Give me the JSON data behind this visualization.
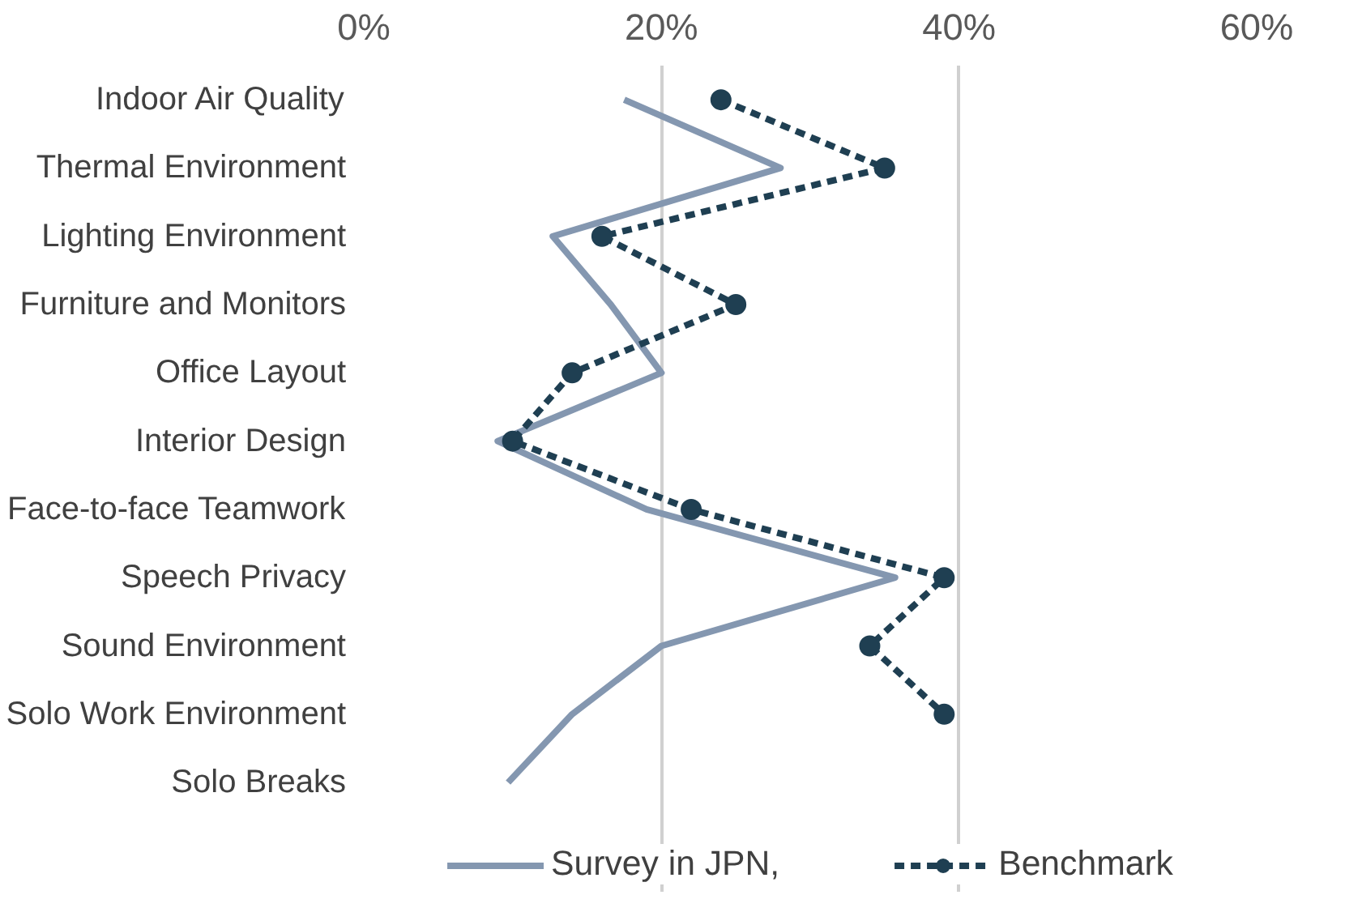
{
  "chart_data": {
    "type": "line",
    "orientation": "horizontal",
    "categories": [
      "Indoor Air Quality",
      "Thermal Environment",
      "Lighting Environment",
      "Furniture and Monitors",
      "Office Layout",
      "Interior Design",
      "Face-to-face Teamwork",
      "Speech Privacy",
      "Sound Environment",
      "Solo Work Environment",
      "Solo Breaks"
    ],
    "series": [
      {
        "name": "Survey in JPN,",
        "color": "#8497b0",
        "marker": "none",
        "line_style": "solid",
        "values": [
          17.5,
          28,
          12.7,
          16.6,
          20,
          9,
          19,
          35.7,
          20,
          14,
          9.7
        ]
      },
      {
        "name": "Benchmark",
        "color": "#1f3f52",
        "marker": "circle",
        "line_style": "dashed",
        "values": [
          24,
          35,
          16,
          25,
          14,
          10,
          22,
          39,
          34,
          39,
          null
        ]
      }
    ],
    "xlim": [
      0,
      60
    ],
    "xticks": [
      {
        "value": 0,
        "label": "0%"
      },
      {
        "value": 20,
        "label": "20%"
      },
      {
        "value": 40,
        "label": "40%"
      },
      {
        "value": 60,
        "label": "60%"
      }
    ],
    "grid": "x",
    "legend": "bottom"
  }
}
